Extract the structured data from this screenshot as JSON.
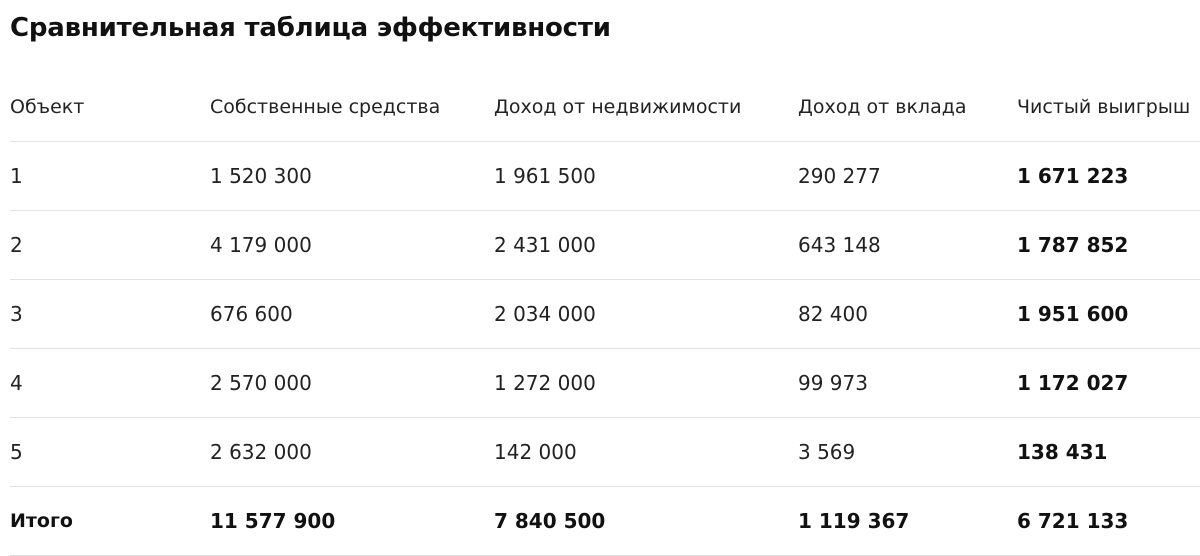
{
  "title": "Сравнительная таблица эффективности",
  "table": {
    "headers": [
      "Объект",
      "Собственные средства",
      "Доход от недвижимости",
      "Доход от вклада",
      "Чистый выигрыш"
    ],
    "rows": [
      [
        "1",
        "1 520 300",
        "1 961 500",
        "290 277",
        "1 671 223"
      ],
      [
        "2",
        "4 179 000",
        "2 431 000",
        "643 148",
        "1 787 852"
      ],
      [
        "3",
        "676 600",
        "2 034 000",
        "82 400",
        "1 951 600"
      ],
      [
        "4",
        "2 570 000",
        "1 272 000",
        "99 973",
        "1 172 027"
      ],
      [
        "5",
        "2 632 000",
        "142 000",
        "3 569",
        "138 431"
      ]
    ],
    "total": [
      "Итого",
      "11 577 900",
      "7 840 500",
      "1 119 367",
      "6 721 133"
    ]
  }
}
